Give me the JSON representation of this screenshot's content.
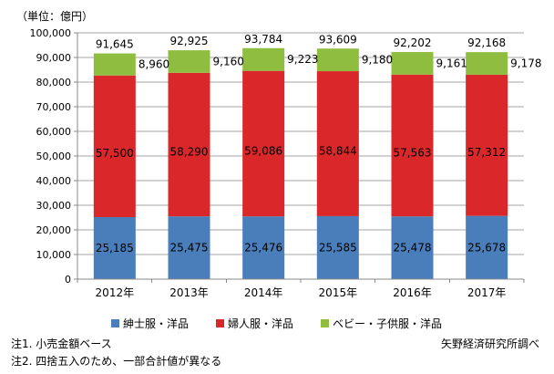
{
  "chart_data": {
    "type": "bar",
    "stacked": true,
    "unit_label": "（単位：億円）",
    "categories": [
      "2012年",
      "2013年",
      "2014年",
      "2015年",
      "2016年",
      "2017年"
    ],
    "totals": [
      91645,
      92925,
      93784,
      93609,
      92202,
      92168
    ],
    "series": [
      {
        "name": "紳士服・洋品",
        "values": [
          25185,
          25475,
          25476,
          25585,
          25478,
          25678
        ],
        "color": "#4a7ebb"
      },
      {
        "name": "婦人服・洋品",
        "values": [
          57500,
          58290,
          59086,
          58844,
          57563,
          57312
        ],
        "color": "#d9272a"
      },
      {
        "name": "ベビー・子供服・洋品",
        "values": [
          8960,
          9160,
          9223,
          9180,
          9161,
          9178
        ],
        "color": "#8fbd3f"
      }
    ],
    "ylim": [
      0,
      100000
    ],
    "yticks": [
      "0",
      "10,000",
      "20,000",
      "30,000",
      "40,000",
      "50,000",
      "60,000",
      "70,000",
      "80,000",
      "90,000",
      "100,000"
    ],
    "data_labels": {
      "totals": [
        "91,645",
        "92,925",
        "93,784",
        "93,609",
        "92,202",
        "92,168"
      ],
      "series": [
        [
          "25,185",
          "25,475",
          "25,476",
          "25,585",
          "25,478",
          "25,678"
        ],
        [
          "57,500",
          "58,290",
          "59,086",
          "58,844",
          "57,563",
          "57,312"
        ],
        [
          "8,960",
          "9,160",
          "9,223",
          "9,180",
          "9,161",
          "9,178"
        ]
      ]
    },
    "grid": true,
    "legend_position": "bottom"
  },
  "notes": [
    "注1. 小売金額ベース",
    "注2. 四捨五入のため、一部合計値が異なる"
  ],
  "source": "矢野経済研究所調べ"
}
